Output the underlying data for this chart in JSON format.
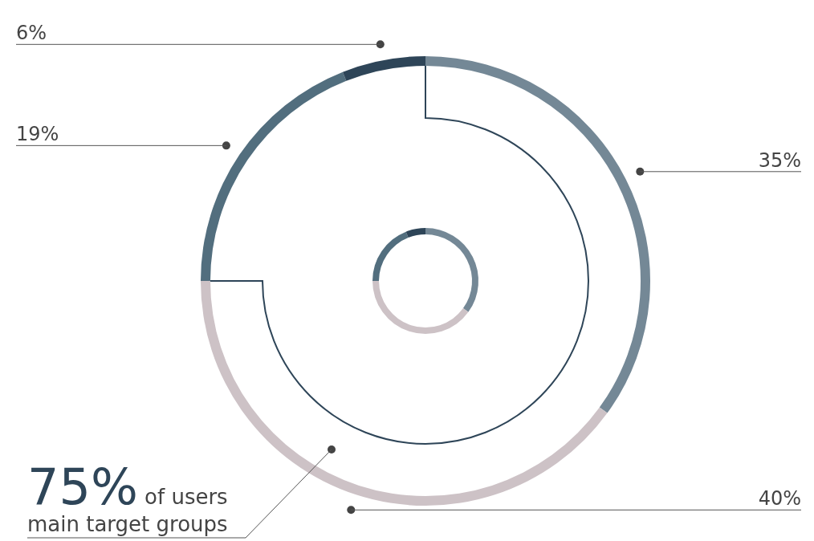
{
  "chart_data": {
    "type": "donut",
    "categories": [
      null,
      null,
      null,
      null
    ],
    "series": [
      {
        "values": [
          35,
          40,
          19,
          6
        ]
      },
      {
        "values": [
          35,
          40,
          19,
          6
        ]
      }
    ],
    "colors": [
      "#748896",
      "#cdc2c6",
      "#526e7e",
      "#2e4558"
    ],
    "value_labels": [
      "35%",
      "40%",
      "19%",
      "6%"
    ],
    "annotations": [
      "75%",
      "of users",
      "main target groups"
    ],
    "legend": false
  }
}
